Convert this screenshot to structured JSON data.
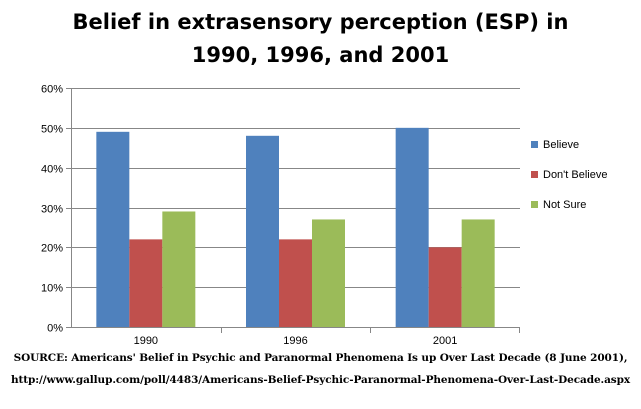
{
  "chart_data": {
    "type": "bar",
    "title_lines": [
      "Belief in extrasensory perception (ESP) in",
      "1990, 1996, and 2001"
    ],
    "categories": [
      "1990",
      "1996",
      "2001"
    ],
    "series": [
      {
        "name": "Believe",
        "color": "#4F81BD",
        "values": [
          49,
          48,
          50
        ]
      },
      {
        "name": "Don't Believe",
        "color": "#C0504D",
        "values": [
          22,
          22,
          20
        ]
      },
      {
        "name": "Not Sure",
        "color": "#9BBB59",
        "values": [
          29,
          27,
          27
        ]
      }
    ],
    "ylim": [
      0,
      60
    ],
    "ytick_step": 10,
    "ytick_format": "percent",
    "grid": true,
    "legend_position": "right"
  },
  "source": {
    "line1": "SOURCE: Americans' Belief in Psychic and Paranormal Phenomena Is up Over Last Decade (8 June 2001),",
    "line2": "http://www.gallup.com/poll/4483/Americans-Belief-Psychic-Paranormal-Phenomena-Over-Last-Decade.aspx"
  }
}
